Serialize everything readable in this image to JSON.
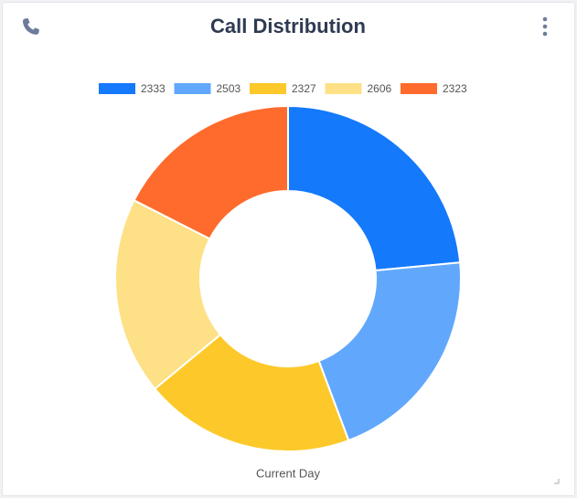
{
  "chart_data": {
    "type": "pie",
    "donut": true,
    "title": "Call Distribution",
    "xlabel": "Current Day",
    "categories": [
      "2333",
      "2503",
      "2327",
      "2606",
      "2323"
    ],
    "values": [
      23.5,
      20.8,
      19.7,
      18.5,
      17.5
    ],
    "colors": [
      "#1479fb",
      "#61a8fd",
      "#fdc92a",
      "#fee086",
      "#fe6b2c"
    ]
  }
}
